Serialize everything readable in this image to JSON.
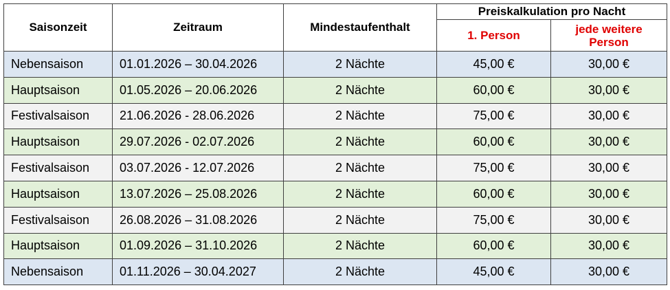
{
  "table": {
    "header": {
      "columns": [
        "Saisonzeit",
        "Zeitraum",
        "Mindestaufenthalt"
      ],
      "price_group": "Preiskalkulation pro Nacht",
      "price_columns": [
        "1. Person",
        "jede weitere Person"
      ]
    },
    "rows": [
      {
        "cells": [
          "Nebensaison",
          "01.01.2026 – 30.04.2026",
          "2 Nächte",
          "45,00 €",
          "30,00 €"
        ],
        "color": "#dce6f2"
      },
      {
        "cells": [
          "Hauptsaison",
          "01.05.2026 – 20.06.2026",
          "2 Nächte",
          "60,00 €",
          "30,00 €"
        ],
        "color": "#e2f0d9"
      },
      {
        "cells": [
          "Festivalsaison",
          "21.06.2026 - 28.06.2026",
          "2 Nächte",
          "75,00 €",
          "30,00 €"
        ],
        "color": "#f2f2f2"
      },
      {
        "cells": [
          "Hauptsaison",
          "29.07.2026 - 02.07.2026",
          "2 Nächte",
          "60,00 €",
          "30,00 €"
        ],
        "color": "#e2f0d9"
      },
      {
        "cells": [
          "Festivalsaison",
          "03.07.2026 - 12.07.2026",
          "2 Nächte",
          "75,00 €",
          "30,00 €"
        ],
        "color": "#f2f2f2"
      },
      {
        "cells": [
          "Hauptsaison",
          "13.07.2026 – 25.08.2026",
          "2 Nächte",
          "60,00 €",
          "30,00 €"
        ],
        "color": "#e2f0d9"
      },
      {
        "cells": [
          "Festivalsaison",
          "26.08.2026 – 31.08.2026",
          "2 Nächte",
          "75,00 €",
          "30,00 €"
        ],
        "color": "#f2f2f2"
      },
      {
        "cells": [
          "Hauptsaison",
          "01.09.2026 – 31.10.2026",
          "2 Nächte",
          "60,00 €",
          "30,00 €"
        ],
        "color": "#e2f0d9"
      },
      {
        "cells": [
          "Nebensaison",
          "01.11.2026 – 30.04.2027",
          "2 Nächte",
          "45,00 €",
          "30,00 €"
        ],
        "color": "#dce6f2"
      }
    ]
  }
}
